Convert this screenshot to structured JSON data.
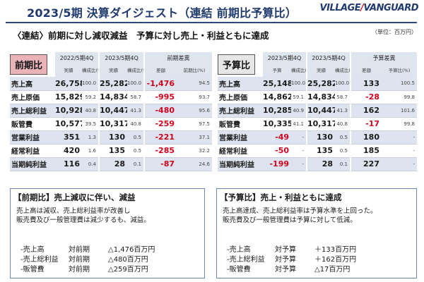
{
  "header": {
    "title": "2023/5期 決算ダイジェスト（連結 前期比予算比）",
    "logo_left": "VILLAGE",
    "logo_slash": "/",
    "logo_right": "VANGUARD",
    "unit": "（単位：百万円）",
    "subtitle": "〈連結〉前期に対し減収減益　予算に対し売上・利益ともに達成"
  },
  "colors": {
    "title_blue": "#1f3a6e",
    "band_blue": "#dde4f0",
    "negative_red": "#d1001c",
    "badge_pink": "#e8b4b8",
    "badge_gray": "#e6e6e6"
  },
  "left_table": {
    "badge": "前期比",
    "col_groups": [
      "2022/5期4Q",
      "2023/5期4Q",
      "前期差異"
    ],
    "sub_headers": [
      "実績",
      "構成比(%)",
      "実績",
      "構成比(%)",
      "差額",
      "前期比(%)"
    ],
    "rows": [
      {
        "label": "売上高",
        "prev": "26,758",
        "prev_ratio": "100.0",
        "curr": "25,282",
        "curr_ratio": "100.0",
        "diff": "-1,476",
        "diff_neg": true,
        "pct": "94.5"
      },
      {
        "label": "売上原価",
        "prev": "15,829",
        "prev_ratio": "59.2",
        "curr": "14,834",
        "curr_ratio": "58.7",
        "diff": "-995",
        "diff_neg": true,
        "pct": "93.7"
      },
      {
        "label": "売上総利益",
        "prev": "10,928",
        "prev_ratio": "40.8",
        "curr": "10,447",
        "curr_ratio": "41.3",
        "diff": "-480",
        "diff_neg": true,
        "pct": "95.6"
      },
      {
        "label": "販管費",
        "prev": "10,577",
        "prev_ratio": "39.5",
        "curr": "10,317",
        "curr_ratio": "40.8",
        "diff": "-259",
        "diff_neg": true,
        "pct": "97.5"
      },
      {
        "label": "営業利益",
        "prev": "351",
        "prev_ratio": "1.3",
        "curr": "130",
        "curr_ratio": "0.5",
        "diff": "-221",
        "diff_neg": true,
        "pct": "37.1"
      },
      {
        "label": "経常利益",
        "prev": "420",
        "prev_ratio": "1.6",
        "curr": "135",
        "curr_ratio": "0.5",
        "diff": "-285",
        "diff_neg": true,
        "pct": "32.2"
      },
      {
        "label": "当期純利益",
        "prev": "116",
        "prev_ratio": "0.4",
        "curr": "28",
        "curr_ratio": "0.1",
        "diff": "-87",
        "diff_neg": true,
        "pct": "24.6"
      }
    ]
  },
  "right_table": {
    "badge": "予算比",
    "col_groups": [
      "2023/5期4Q",
      "2023/5期4Q",
      "予算差異"
    ],
    "sub_headers": [
      "予算",
      "構成比(%)",
      "実績",
      "構成比(%)",
      "差額",
      "予算比(%)"
    ],
    "rows": [
      {
        "label": "売上高",
        "budget": "25,148",
        "budget_ratio": "100.0",
        "actual": "25,282",
        "actual_ratio": "100.0",
        "diff": "133",
        "diff_neg": false,
        "pct": "100.5",
        "budget_neg": false
      },
      {
        "label": "売上原価",
        "budget": "14,862",
        "budget_ratio": "59.1",
        "actual": "14,834",
        "actual_ratio": "58.7",
        "diff": "-28",
        "diff_neg": true,
        "pct": "99.8",
        "budget_neg": false
      },
      {
        "label": "売上総利益",
        "budget": "10,285",
        "budget_ratio": "40.9",
        "actual": "10,447",
        "actual_ratio": "41.3",
        "diff": "162",
        "diff_neg": false,
        "pct": "101.6",
        "budget_neg": false
      },
      {
        "label": "販管費",
        "budget": "10,335",
        "budget_ratio": "41.1",
        "actual": "10,317",
        "actual_ratio": "40.8",
        "diff": "-17",
        "diff_neg": true,
        "pct": "99.8",
        "budget_neg": false
      },
      {
        "label": "営業利益",
        "budget": "-49",
        "budget_ratio": "-",
        "actual": "130",
        "actual_ratio": "0.5",
        "diff": "180",
        "diff_neg": false,
        "pct": "-",
        "budget_neg": true
      },
      {
        "label": "経常利益",
        "budget": "-50",
        "budget_ratio": "-",
        "actual": "135",
        "actual_ratio": "0.5",
        "diff": "185",
        "diff_neg": false,
        "pct": "-",
        "budget_neg": true
      },
      {
        "label": "当期純利益",
        "budget": "-199",
        "budget_ratio": "-",
        "actual": "28",
        "actual_ratio": "0.1",
        "diff": "227",
        "diff_neg": false,
        "pct": "-",
        "budget_neg": true
      }
    ]
  },
  "left_panel": {
    "title": "【前期比】売上減収に伴い、減益",
    "body": [
      "売上高は減収、売上総利益率が改善し",
      "販売費及び一般管理費は減少するも、減益。"
    ],
    "items": [
      {
        "name": "-売上高",
        "type": "対前期",
        "value": "△1,476百万円"
      },
      {
        "name": "-売上総利益",
        "type": "対前期",
        "value": "△480百万円"
      },
      {
        "name": "-販管費",
        "type": "対前期",
        "value": "△259百万円"
      }
    ]
  },
  "right_panel": {
    "title": "【予算比】売上・利益ともに達成",
    "body": [
      "売上高達成、売上総利益率は予算水準を上回った。",
      "販売費及び一般管理費は予算に対して低減。"
    ],
    "items": [
      {
        "name": "-売上高",
        "type": "対予算",
        "value": "＋133百万円"
      },
      {
        "name": "-売上総利益",
        "type": "対予算",
        "value": "＋162百万円"
      },
      {
        "name": "-販管費",
        "type": "対予算",
        "value": "△17百万円"
      }
    ]
  }
}
